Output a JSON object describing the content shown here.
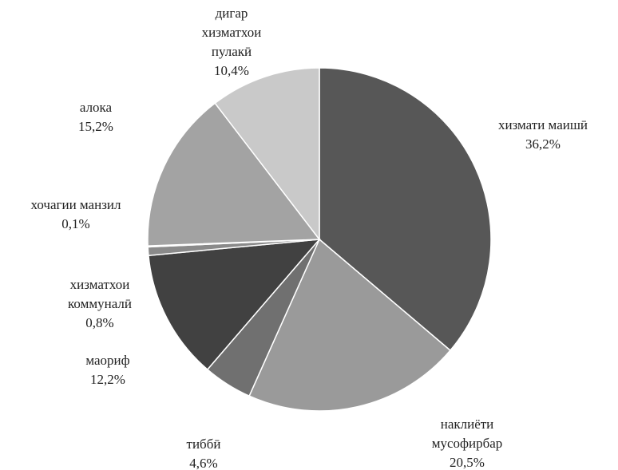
{
  "chart_data": {
    "type": "pie",
    "categories": [
      "хизмати маишӣ",
      "наклиёти мусофирбар",
      "тиббӣ",
      "маориф",
      "хизматхои коммуналӣ",
      "хочагии манзил",
      "алока",
      "дигар хизматхои пулакӣ"
    ],
    "values": [
      36.2,
      20.5,
      4.6,
      12.2,
      0.8,
      0.1,
      15.2,
      10.4
    ],
    "value_labels": [
      "36,2%",
      "20,5%",
      "4,6%",
      "12,2%",
      "0,8%",
      "0,1%",
      "15,2%",
      "10,4%"
    ],
    "colors": [
      "#575757",
      "#9a9a9a",
      "#707070",
      "#414141",
      "#8a8a8a",
      "#b0b0b0",
      "#a3a3a3",
      "#c9c9c9"
    ]
  }
}
